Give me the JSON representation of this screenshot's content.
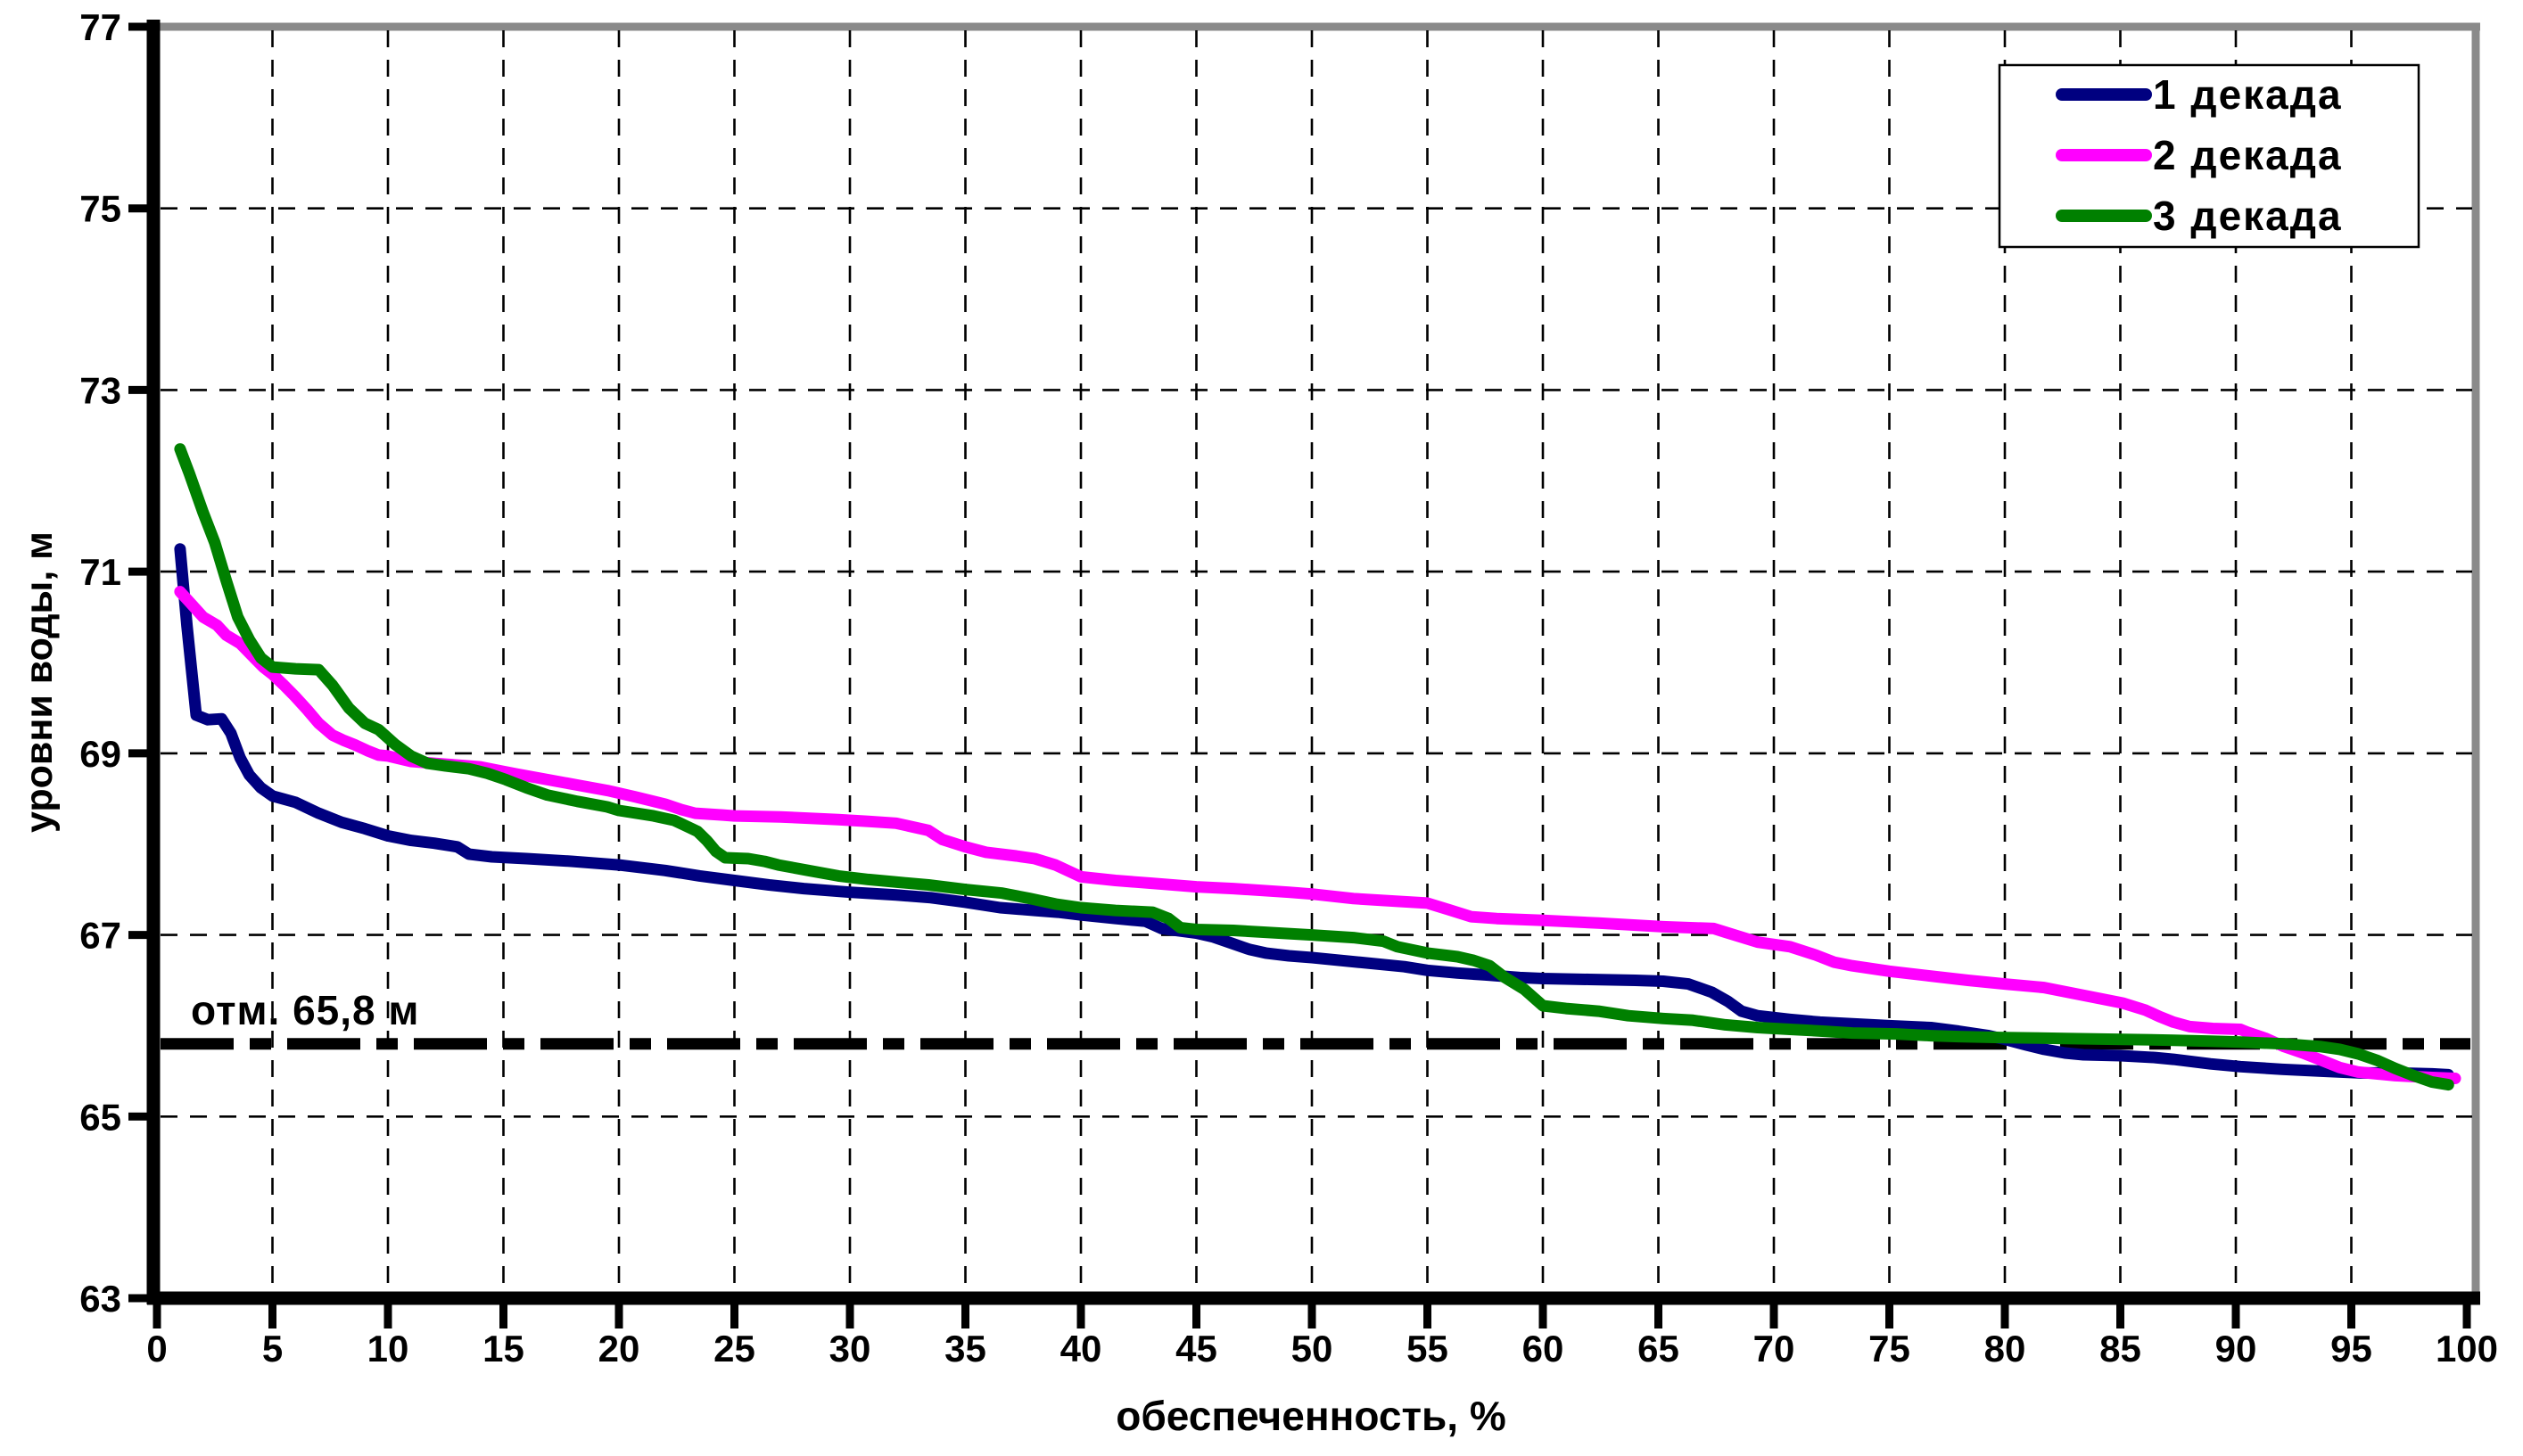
{
  "chart_data": {
    "type": "line",
    "title": "",
    "xlabel": "обеспеченность, %",
    "ylabel": "уровни воды, м",
    "xlim": [
      0,
      100
    ],
    "ylim": [
      63,
      77
    ],
    "x_ticks": [
      0,
      5,
      10,
      15,
      20,
      25,
      30,
      35,
      40,
      45,
      50,
      55,
      60,
      65,
      70,
      75,
      80,
      85,
      90,
      95,
      100
    ],
    "y_ticks": [
      63,
      65,
      67,
      69,
      71,
      73,
      75,
      77
    ],
    "grid_x": [
      5,
      10,
      15,
      20,
      25,
      30,
      35,
      40,
      45,
      50,
      55,
      60,
      65,
      70,
      75,
      80,
      85,
      90,
      95
    ],
    "grid_y": [
      65,
      67,
      69,
      71,
      73,
      75
    ],
    "grid": true,
    "legend_position": "top-right",
    "background_color": "#ffffff",
    "plot_border_color": "#8a8a8a",
    "reference_line": {
      "value": 65.8,
      "label": "отм. 65,8 м",
      "color": "#000000",
      "style": "dash-dot"
    },
    "series": [
      {
        "name": "1 декада",
        "color": "#000080",
        "points": [
          [
            1,
            71.25
          ],
          [
            1.3,
            70.4
          ],
          [
            1.7,
            69.42
          ],
          [
            2.2,
            69.37
          ],
          [
            2.8,
            69.38
          ],
          [
            3.2,
            69.22
          ],
          [
            3.6,
            68.95
          ],
          [
            4,
            68.76
          ],
          [
            4.5,
            68.62
          ],
          [
            5,
            68.53
          ],
          [
            6,
            68.46
          ],
          [
            7,
            68.34
          ],
          [
            8,
            68.24
          ],
          [
            9,
            68.17
          ],
          [
            10,
            68.09
          ],
          [
            11,
            68.04
          ],
          [
            12,
            68.01
          ],
          [
            13,
            67.97
          ],
          [
            13.5,
            67.89
          ],
          [
            14.5,
            67.86
          ],
          [
            16,
            67.84
          ],
          [
            18,
            67.81
          ],
          [
            20,
            67.77
          ],
          [
            22,
            67.71
          ],
          [
            23.5,
            67.65
          ],
          [
            25,
            67.6
          ],
          [
            26.5,
            67.55
          ],
          [
            28,
            67.51
          ],
          [
            30,
            67.47
          ],
          [
            32,
            67.44
          ],
          [
            33.5,
            67.41
          ],
          [
            35,
            67.36
          ],
          [
            36.5,
            67.3
          ],
          [
            38,
            67.27
          ],
          [
            39,
            67.25
          ],
          [
            40,
            67.22
          ],
          [
            41.5,
            67.18
          ],
          [
            42.8,
            67.15
          ],
          [
            43.5,
            67.07
          ],
          [
            45,
            67.02
          ],
          [
            45.7,
            66.98
          ],
          [
            46.5,
            66.91
          ],
          [
            47.3,
            66.84
          ],
          [
            48,
            66.8
          ],
          [
            49,
            66.77
          ],
          [
            50,
            66.75
          ],
          [
            52,
            66.7
          ],
          [
            54,
            66.65
          ],
          [
            55,
            66.61
          ],
          [
            56.3,
            66.58
          ],
          [
            57.5,
            66.56
          ],
          [
            59,
            66.53
          ],
          [
            60,
            66.52
          ],
          [
            62,
            66.51
          ],
          [
            64,
            66.5
          ],
          [
            65.2,
            66.49
          ],
          [
            66.3,
            66.46
          ],
          [
            67.3,
            66.37
          ],
          [
            68,
            66.27
          ],
          [
            68.6,
            66.16
          ],
          [
            69.3,
            66.11
          ],
          [
            70.7,
            66.07
          ],
          [
            72,
            66.04
          ],
          [
            73.5,
            66.02
          ],
          [
            75,
            66.0
          ],
          [
            76.8,
            65.98
          ],
          [
            78,
            65.94
          ],
          [
            79.3,
            65.89
          ],
          [
            80,
            65.85
          ],
          [
            80.9,
            65.79
          ],
          [
            81.7,
            65.74
          ],
          [
            82.6,
            65.7
          ],
          [
            83.4,
            65.68
          ],
          [
            85,
            65.67
          ],
          [
            86.5,
            65.65
          ],
          [
            87.3,
            65.63
          ],
          [
            88.9,
            65.58
          ],
          [
            90.2,
            65.55
          ],
          [
            92,
            65.52
          ],
          [
            93.7,
            65.5
          ],
          [
            95.4,
            65.48
          ],
          [
            97,
            65.48
          ],
          [
            98.5,
            65.47
          ],
          [
            99.2,
            65.46
          ]
        ]
      },
      {
        "name": "2 декада",
        "color": "#FF00FF",
        "points": [
          [
            1,
            70.78
          ],
          [
            1.5,
            70.64
          ],
          [
            2,
            70.5
          ],
          [
            2.6,
            70.41
          ],
          [
            3,
            70.3
          ],
          [
            3.6,
            70.21
          ],
          [
            4.1,
            70.08
          ],
          [
            4.6,
            69.95
          ],
          [
            5,
            69.87
          ],
          [
            5.5,
            69.75
          ],
          [
            6,
            69.62
          ],
          [
            6.5,
            69.48
          ],
          [
            7,
            69.33
          ],
          [
            7.6,
            69.2
          ],
          [
            8.1,
            69.14
          ],
          [
            8.6,
            69.09
          ],
          [
            9.1,
            69.03
          ],
          [
            9.6,
            68.98
          ],
          [
            10,
            68.97
          ],
          [
            11,
            68.91
          ],
          [
            12,
            68.89
          ],
          [
            13,
            68.87
          ],
          [
            14,
            68.85
          ],
          [
            15,
            68.8
          ],
          [
            15.6,
            68.77
          ],
          [
            16.9,
            68.71
          ],
          [
            18.2,
            68.65
          ],
          [
            19.5,
            68.59
          ],
          [
            20.7,
            68.52
          ],
          [
            22,
            68.44
          ],
          [
            22.7,
            68.38
          ],
          [
            23.3,
            68.34
          ],
          [
            24.5,
            68.32
          ],
          [
            25,
            68.31
          ],
          [
            27,
            68.3
          ],
          [
            29.5,
            68.27
          ],
          [
            30.8,
            68.25
          ],
          [
            32,
            68.23
          ],
          [
            33.4,
            68.15
          ],
          [
            34,
            68.05
          ],
          [
            35,
            67.97
          ],
          [
            35.9,
            67.91
          ],
          [
            37.2,
            67.87
          ],
          [
            38,
            67.84
          ],
          [
            38.9,
            67.77
          ],
          [
            40,
            67.64
          ],
          [
            41.5,
            67.6
          ],
          [
            43,
            67.57
          ],
          [
            45,
            67.53
          ],
          [
            46.6,
            67.51
          ],
          [
            49,
            67.47
          ],
          [
            50,
            67.45
          ],
          [
            51.8,
            67.4
          ],
          [
            53.7,
            67.37
          ],
          [
            55,
            67.35
          ],
          [
            55.9,
            67.28
          ],
          [
            56.9,
            67.2
          ],
          [
            58,
            67.18
          ],
          [
            60,
            67.16
          ],
          [
            62.4,
            67.13
          ],
          [
            65.2,
            67.09
          ],
          [
            67.4,
            67.07
          ],
          [
            67.9,
            67.03
          ],
          [
            69.3,
            66.92
          ],
          [
            70.7,
            66.87
          ],
          [
            71.8,
            66.78
          ],
          [
            72.6,
            66.7
          ],
          [
            73.4,
            66.66
          ],
          [
            75,
            66.6
          ],
          [
            76.7,
            66.55
          ],
          [
            78.4,
            66.5
          ],
          [
            80,
            66.46
          ],
          [
            81.7,
            66.42
          ],
          [
            82.9,
            66.36
          ],
          [
            84.1,
            66.3
          ],
          [
            85.1,
            66.25
          ],
          [
            86.1,
            66.17
          ],
          [
            86.7,
            66.1
          ],
          [
            87.3,
            66.04
          ],
          [
            88,
            65.99
          ],
          [
            89,
            65.97
          ],
          [
            90.2,
            65.96
          ],
          [
            90.5,
            65.93
          ],
          [
            91.3,
            65.86
          ],
          [
            92.1,
            65.77
          ],
          [
            92.9,
            65.7
          ],
          [
            93.7,
            65.62
          ],
          [
            94.5,
            65.54
          ],
          [
            95.3,
            65.49
          ],
          [
            96.9,
            65.45
          ],
          [
            98.5,
            65.43
          ],
          [
            99.5,
            65.42
          ]
        ]
      },
      {
        "name": "3 декада",
        "color": "#008000",
        "points": [
          [
            1,
            72.35
          ],
          [
            1.4,
            72.08
          ],
          [
            2,
            71.65
          ],
          [
            2.5,
            71.32
          ],
          [
            3,
            70.9
          ],
          [
            3.5,
            70.5
          ],
          [
            4,
            70.25
          ],
          [
            4.5,
            70.05
          ],
          [
            5,
            69.95
          ],
          [
            6,
            69.93
          ],
          [
            7,
            69.92
          ],
          [
            7.6,
            69.75
          ],
          [
            8.3,
            69.5
          ],
          [
            9,
            69.33
          ],
          [
            9.6,
            69.26
          ],
          [
            10.3,
            69.1
          ],
          [
            11,
            68.97
          ],
          [
            11.7,
            68.89
          ],
          [
            12.5,
            68.86
          ],
          [
            13.5,
            68.83
          ],
          [
            14.3,
            68.78
          ],
          [
            15.1,
            68.71
          ],
          [
            16,
            68.62
          ],
          [
            16.9,
            68.54
          ],
          [
            18.2,
            68.47
          ],
          [
            19.5,
            68.41
          ],
          [
            20,
            68.37
          ],
          [
            21.5,
            68.31
          ],
          [
            22.4,
            68.26
          ],
          [
            23.4,
            68.14
          ],
          [
            23.8,
            68.04
          ],
          [
            24.2,
            67.92
          ],
          [
            24.6,
            67.85
          ],
          [
            25.6,
            67.84
          ],
          [
            26.3,
            67.81
          ],
          [
            26.9,
            67.77
          ],
          [
            28.2,
            67.71
          ],
          [
            29.5,
            67.65
          ],
          [
            30.8,
            67.61
          ],
          [
            32.1,
            67.58
          ],
          [
            33.4,
            67.55
          ],
          [
            35,
            67.5
          ],
          [
            36.6,
            67.46
          ],
          [
            37.8,
            67.4
          ],
          [
            38.9,
            67.34
          ],
          [
            40,
            67.3
          ],
          [
            41.5,
            67.27
          ],
          [
            43.1,
            67.25
          ],
          [
            43.8,
            67.18
          ],
          [
            44.3,
            67.08
          ],
          [
            45,
            67.06
          ],
          [
            46.6,
            67.05
          ],
          [
            47.9,
            67.03
          ],
          [
            50,
            67.0
          ],
          [
            51.8,
            66.97
          ],
          [
            53.1,
            66.93
          ],
          [
            53.7,
            66.87
          ],
          [
            55,
            66.8
          ],
          [
            56.3,
            66.76
          ],
          [
            57,
            66.72
          ],
          [
            57.7,
            66.66
          ],
          [
            58.3,
            66.54
          ],
          [
            59.2,
            66.4
          ],
          [
            60,
            66.22
          ],
          [
            61,
            66.19
          ],
          [
            62.4,
            66.16
          ],
          [
            63.7,
            66.11
          ],
          [
            65.2,
            66.08
          ],
          [
            66.5,
            66.06
          ],
          [
            67.9,
            66.01
          ],
          [
            69.3,
            65.98
          ],
          [
            70.7,
            65.96
          ],
          [
            72.1,
            65.94
          ],
          [
            73.4,
            65.92
          ],
          [
            75.3,
            65.91
          ],
          [
            76.8,
            65.89
          ],
          [
            78,
            65.88
          ],
          [
            80,
            65.87
          ],
          [
            82.6,
            65.86
          ],
          [
            85.1,
            65.85
          ],
          [
            87.3,
            65.84
          ],
          [
            88.9,
            65.83
          ],
          [
            90.2,
            65.82
          ],
          [
            92.1,
            65.8
          ],
          [
            93.7,
            65.77
          ],
          [
            94.5,
            65.74
          ],
          [
            95.3,
            65.69
          ],
          [
            96.1,
            65.62
          ],
          [
            96.9,
            65.53
          ],
          [
            97.7,
            65.45
          ],
          [
            98.5,
            65.38
          ],
          [
            99.2,
            65.35
          ]
        ]
      }
    ]
  }
}
